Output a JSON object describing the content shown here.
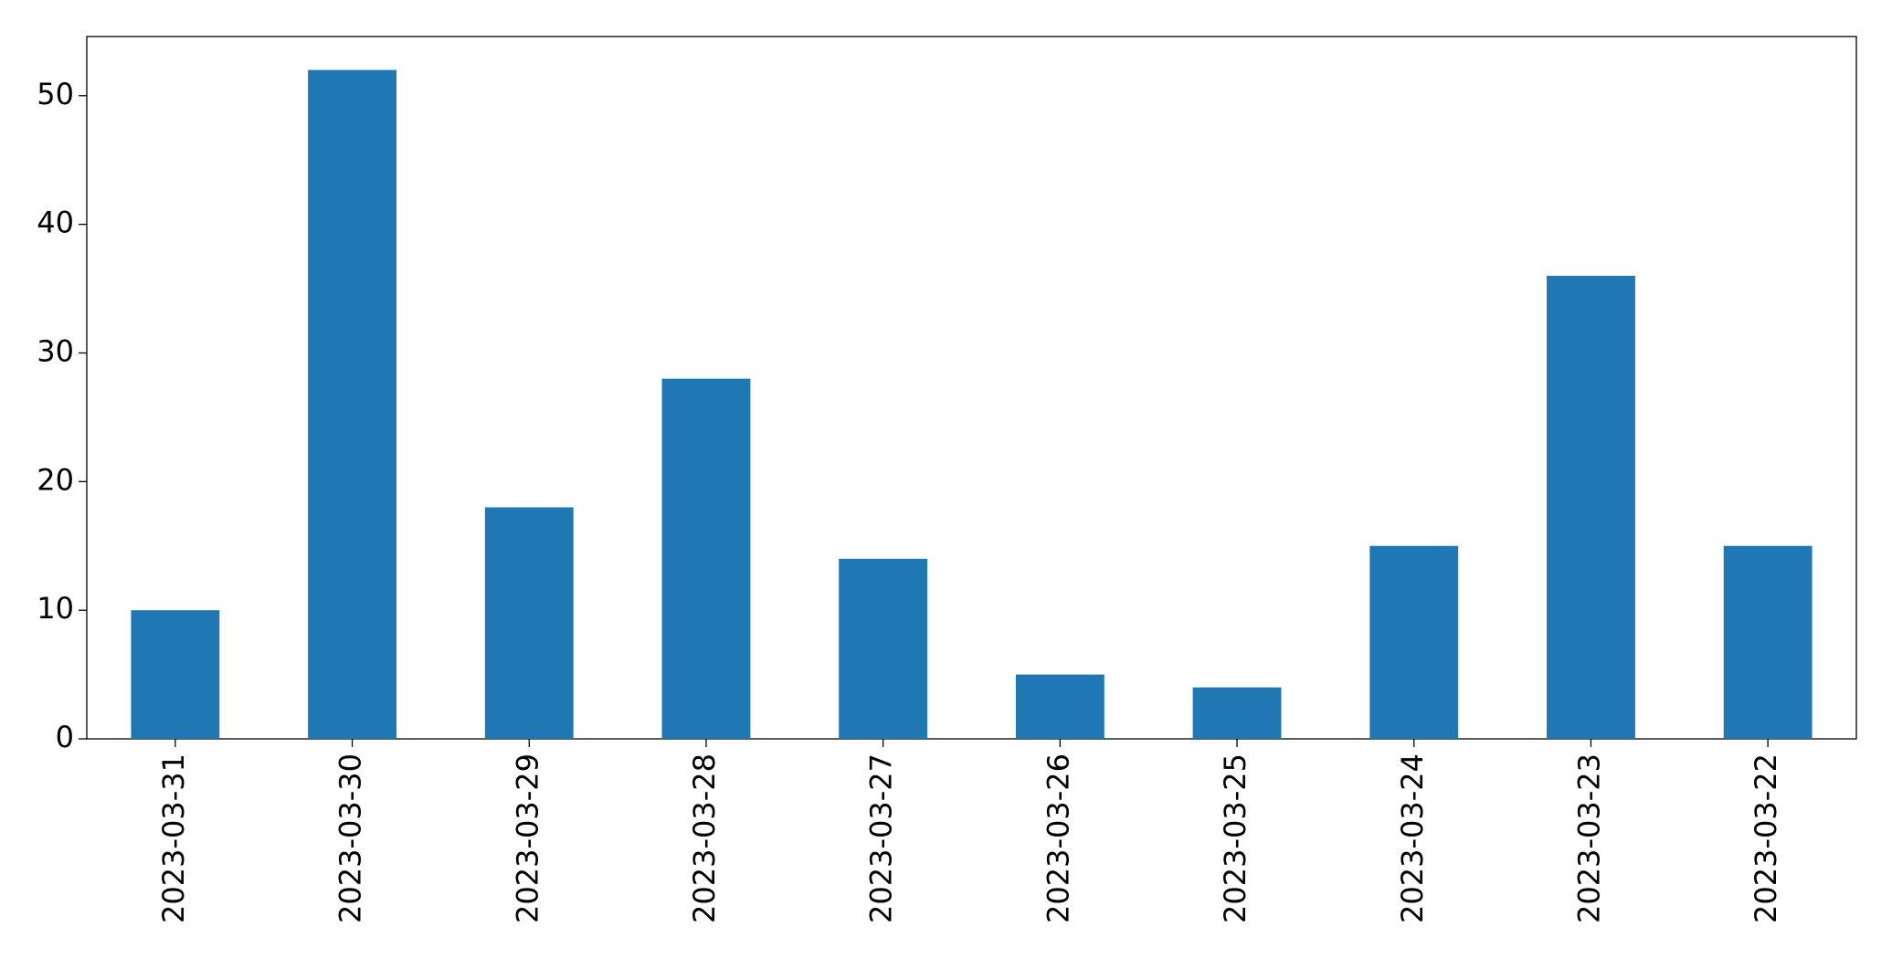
{
  "chart_data": {
    "type": "bar",
    "categories": [
      "2023-03-31",
      "2023-03-30",
      "2023-03-29",
      "2023-03-28",
      "2023-03-27",
      "2023-03-26",
      "2023-03-25",
      "2023-03-24",
      "2023-03-23",
      "2023-03-22"
    ],
    "values": [
      10,
      52,
      18,
      28,
      14,
      5,
      4,
      15,
      36,
      15
    ],
    "color": "#1f77b4",
    "ylim": [
      0,
      54.6
    ],
    "yticks": [
      0,
      10,
      20,
      30,
      40,
      50
    ],
    "grid": false
  }
}
